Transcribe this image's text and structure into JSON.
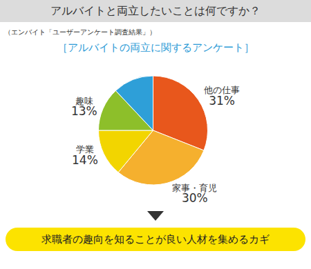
{
  "header": {
    "title": "アルバイトと両立したいことは何ですか？",
    "source": "（エンバイト「ユーザーアンケート調査結果」）"
  },
  "chart_data": {
    "type": "pie",
    "title": "［アルバイトの両立に関するアンケート］",
    "categories": [
      "他の仕事",
      "家事・育児",
      "学業",
      "趣味",
      null
    ],
    "values": [
      31,
      30,
      14,
      13,
      12
    ],
    "value_labels": [
      "31%",
      "30%",
      "14%",
      "13%",
      null
    ],
    "colors": [
      "#e8571c",
      "#f5b02e",
      "#f2d500",
      "#8dbf2a",
      "#2e9fd8"
    ],
    "data_labels": true
  },
  "footer": {
    "text": "求職者の趣向を知ることが良い人材を集めるカギ"
  }
}
